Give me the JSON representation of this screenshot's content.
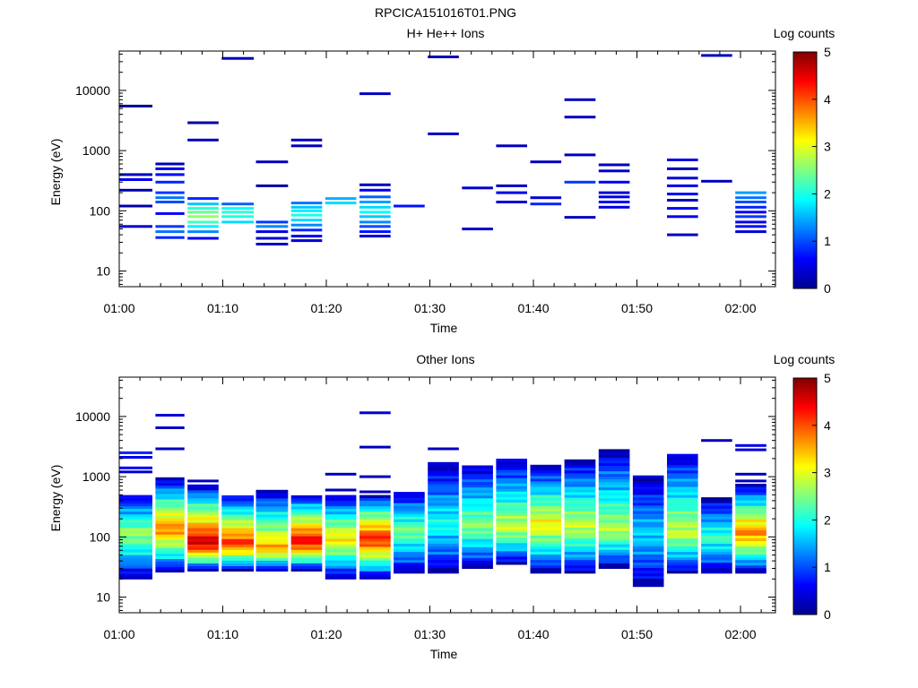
{
  "figure_title": "RPCICA151016T01.PNG",
  "colors": {
    "axis": "#000000",
    "background": "#ffffff"
  },
  "chart_data": [
    {
      "type": "heatmap",
      "title": "H+ He++ Ions",
      "xlabel": "Time",
      "ylabel": "Energy (eV)",
      "y_scale": "log",
      "ylim": [
        5.5,
        45000
      ],
      "xlim": [
        "01:00",
        "02:03"
      ],
      "x_ticks": [
        "01:00",
        "01:10",
        "01:20",
        "01:30",
        "01:40",
        "01:50",
        "02:00"
      ],
      "y_ticks": [
        "10",
        "100",
        "1000",
        "10000"
      ],
      "colorbar": {
        "label": "Log counts",
        "range": [
          0,
          5
        ],
        "ticks": [
          "0",
          "1",
          "2",
          "3",
          "4",
          "5"
        ],
        "colormap": "jet"
      },
      "time_bins_min": [
        [
          0,
          3.2
        ],
        [
          3.5,
          6.3
        ],
        [
          6.6,
          9.6
        ],
        [
          9.9,
          13.0
        ],
        [
          13.2,
          16.3
        ],
        [
          16.6,
          19.6
        ],
        [
          19.9,
          22.9
        ],
        [
          23.2,
          26.2
        ],
        [
          26.5,
          29.5
        ],
        [
          29.8,
          32.8
        ],
        [
          33.1,
          36.1
        ],
        [
          36.4,
          39.4
        ],
        [
          39.7,
          42.7
        ],
        [
          43.0,
          46.0
        ],
        [
          46.3,
          49.3
        ],
        [
          49.6,
          52.6
        ],
        [
          52.9,
          55.9
        ],
        [
          56.2,
          59.2
        ],
        [
          59.5,
          62.5
        ]
      ],
      "cells": [
        [
          0,
          5500,
          0.1
        ],
        [
          0,
          400,
          0.3
        ],
        [
          0,
          330,
          0.6
        ],
        [
          0,
          220,
          0.2
        ],
        [
          0,
          120,
          0.2
        ],
        [
          0,
          55,
          0.4
        ],
        [
          1,
          600,
          0.3
        ],
        [
          1,
          500,
          0.5
        ],
        [
          1,
          400,
          0.6
        ],
        [
          1,
          300,
          0.8
        ],
        [
          1,
          200,
          0.9
        ],
        [
          1,
          165,
          1.2
        ],
        [
          1,
          140,
          1.0
        ],
        [
          1,
          90,
          0.6
        ],
        [
          1,
          55,
          0.9
        ],
        [
          1,
          45,
          1.2
        ],
        [
          1,
          36,
          0.8
        ],
        [
          2,
          2900,
          0.2
        ],
        [
          2,
          1500,
          0.3
        ],
        [
          2,
          160,
          0.8
        ],
        [
          2,
          130,
          1.6
        ],
        [
          2,
          110,
          2.1
        ],
        [
          2,
          95,
          2.4
        ],
        [
          2,
          80,
          2.6
        ],
        [
          2,
          65,
          2.2
        ],
        [
          2,
          55,
          1.8
        ],
        [
          2,
          45,
          1.3
        ],
        [
          2,
          35,
          0.6
        ],
        [
          3,
          34000,
          0.3
        ],
        [
          3,
          130,
          1.1
        ],
        [
          3,
          110,
          1.9
        ],
        [
          3,
          95,
          2.1
        ],
        [
          3,
          80,
          2.0
        ],
        [
          3,
          65,
          1.7
        ],
        [
          4,
          650,
          0.3
        ],
        [
          4,
          260,
          0.2
        ],
        [
          4,
          65,
          0.9
        ],
        [
          4,
          55,
          1.3
        ],
        [
          4,
          45,
          0.5
        ],
        [
          4,
          35,
          0.4
        ],
        [
          4,
          28,
          0.3
        ],
        [
          5,
          1500,
          0.3
        ],
        [
          5,
          1200,
          0.3
        ],
        [
          5,
          135,
          1.2
        ],
        [
          5,
          115,
          1.6
        ],
        [
          5,
          100,
          1.8
        ],
        [
          5,
          85,
          2.0
        ],
        [
          5,
          70,
          1.7
        ],
        [
          5,
          58,
          1.3
        ],
        [
          5,
          48,
          0.8
        ],
        [
          5,
          38,
          0.6
        ],
        [
          5,
          32,
          0.4
        ],
        [
          6,
          160,
          1.5
        ],
        [
          6,
          135,
          1.7
        ],
        [
          7,
          8800,
          0.3
        ],
        [
          7,
          270,
          0.3
        ],
        [
          7,
          220,
          0.6
        ],
        [
          7,
          170,
          1.1
        ],
        [
          7,
          140,
          1.4
        ],
        [
          7,
          115,
          1.7
        ],
        [
          7,
          95,
          1.9
        ],
        [
          7,
          80,
          1.6
        ],
        [
          7,
          65,
          1.3
        ],
        [
          7,
          55,
          1.0
        ],
        [
          7,
          45,
          0.7
        ],
        [
          7,
          38,
          0.4
        ],
        [
          8,
          120,
          0.7
        ],
        [
          9,
          36000,
          0.3
        ],
        [
          9,
          1900,
          0.3
        ],
        [
          10,
          240,
          0.4
        ],
        [
          10,
          50,
          0.4
        ],
        [
          11,
          1200,
          0.3
        ],
        [
          11,
          260,
          0.3
        ],
        [
          11,
          200,
          0.5
        ],
        [
          11,
          140,
          0.4
        ],
        [
          12,
          650,
          0.3
        ],
        [
          12,
          165,
          0.4
        ],
        [
          12,
          130,
          0.8
        ],
        [
          13,
          7000,
          0.3
        ],
        [
          13,
          3600,
          0.3
        ],
        [
          13,
          850,
          0.3
        ],
        [
          13,
          300,
          0.9
        ],
        [
          13,
          78,
          0.3
        ],
        [
          14,
          580,
          0.3
        ],
        [
          14,
          460,
          0.4
        ],
        [
          14,
          300,
          0.6
        ],
        [
          14,
          200,
          0.4
        ],
        [
          14,
          170,
          0.5
        ],
        [
          14,
          140,
          0.6
        ],
        [
          14,
          115,
          0.5
        ],
        [
          16,
          700,
          0.5
        ],
        [
          16,
          500,
          0.3
        ],
        [
          16,
          350,
          0.4
        ],
        [
          16,
          260,
          0.5
        ],
        [
          16,
          190,
          0.6
        ],
        [
          16,
          150,
          0.3
        ],
        [
          16,
          110,
          0.6
        ],
        [
          16,
          80,
          0.5
        ],
        [
          16,
          40,
          0.3
        ],
        [
          17,
          38000,
          0.3
        ],
        [
          17,
          310,
          0.3
        ],
        [
          18,
          200,
          1.4
        ],
        [
          18,
          165,
          1.2
        ],
        [
          18,
          140,
          1.0
        ],
        [
          18,
          115,
          0.8
        ],
        [
          18,
          95,
          0.6
        ],
        [
          18,
          80,
          0.9
        ],
        [
          18,
          65,
          0.5
        ],
        [
          18,
          55,
          0.7
        ],
        [
          18,
          45,
          0.4
        ]
      ]
    },
    {
      "type": "heatmap",
      "title": "Other Ions",
      "xlabel": "Time",
      "ylabel": "Energy (eV)",
      "y_scale": "log",
      "ylim": [
        5.5,
        45000
      ],
      "xlim": [
        "01:00",
        "02:03"
      ],
      "x_ticks": [
        "01:00",
        "01:10",
        "01:20",
        "01:30",
        "01:40",
        "01:50",
        "02:00"
      ],
      "y_ticks": [
        "10",
        "100",
        "1000",
        "10000"
      ],
      "colorbar": {
        "label": "Log counts",
        "range": [
          0,
          5
        ],
        "ticks": [
          "0",
          "1",
          "2",
          "3",
          "4",
          "5"
        ],
        "colormap": "jet"
      },
      "time_bins_min": [
        [
          0,
          3.2
        ],
        [
          3.5,
          6.3
        ],
        [
          6.6,
          9.6
        ],
        [
          9.9,
          13.0
        ],
        [
          13.2,
          16.3
        ],
        [
          16.6,
          19.6
        ],
        [
          19.9,
          22.9
        ],
        [
          23.2,
          26.2
        ],
        [
          26.5,
          29.5
        ],
        [
          29.8,
          32.8
        ],
        [
          33.1,
          36.1
        ],
        [
          36.4,
          39.4
        ],
        [
          39.7,
          42.7
        ],
        [
          43.0,
          46.0
        ],
        [
          46.3,
          49.3
        ],
        [
          49.6,
          52.6
        ],
        [
          52.9,
          55.9
        ],
        [
          56.2,
          59.2
        ],
        [
          59.5,
          62.5
        ]
      ],
      "columns": [
        {
          "bin": 0,
          "lo": 20,
          "hi": 480,
          "peak": 2.7,
          "peak_e": 110,
          "sparse": [
            [
              2500,
              0.8
            ],
            [
              2100,
              0.5
            ],
            [
              1400,
              0.6
            ],
            [
              1200,
              0.4
            ]
          ]
        },
        {
          "bin": 1,
          "lo": 26,
          "hi": 900,
          "peak": 3.8,
          "peak_e": 130,
          "sparse": [
            [
              10500,
              0.4
            ],
            [
              6500,
              0.3
            ],
            [
              2900,
              0.3
            ]
          ]
        },
        {
          "bin": 2,
          "lo": 27,
          "hi": 700,
          "peak": 4.7,
          "peak_e": 75,
          "sparse": [
            [
              850,
              0.3
            ]
          ]
        },
        {
          "bin": 3,
          "lo": 27,
          "hi": 480,
          "peak": 4.2,
          "peak_e": 75,
          "sparse": []
        },
        {
          "bin": 4,
          "lo": 27,
          "hi": 560,
          "peak": 3.6,
          "peak_e": 60,
          "sparse": []
        },
        {
          "bin": 5,
          "lo": 27,
          "hi": 480,
          "peak": 4.5,
          "peak_e": 80,
          "sparse": []
        },
        {
          "bin": 6,
          "lo": 20,
          "hi": 460,
          "peak": 3.3,
          "peak_e": 90,
          "sparse": [
            [
              1100,
              0.3
            ],
            [
              600,
              0.3
            ]
          ]
        },
        {
          "bin": 7,
          "lo": 20,
          "hi": 480,
          "peak": 4.3,
          "peak_e": 90,
          "sparse": [
            [
              11500,
              0.4
            ],
            [
              3100,
              0.3
            ],
            [
              1000,
              0.3
            ],
            [
              560,
              0.3
            ]
          ]
        },
        {
          "bin": 8,
          "lo": 25,
          "hi": 540,
          "peak": 2.5,
          "peak_e": 120,
          "sparse": []
        },
        {
          "bin": 9,
          "lo": 25,
          "hi": 1600,
          "peak": 2.0,
          "peak_e": 150,
          "sparse": [
            [
              2900,
              0.3
            ]
          ]
        },
        {
          "bin": 10,
          "lo": 30,
          "hi": 1500,
          "peak": 2.6,
          "peak_e": 140,
          "sparse": []
        },
        {
          "bin": 11,
          "lo": 35,
          "hi": 1900,
          "peak": 2.9,
          "peak_e": 130,
          "sparse": []
        },
        {
          "bin": 12,
          "lo": 25,
          "hi": 1500,
          "peak": 3.2,
          "peak_e": 150,
          "sparse": []
        },
        {
          "bin": 13,
          "lo": 25,
          "hi": 1800,
          "peak": 2.9,
          "peak_e": 140,
          "sparse": []
        },
        {
          "bin": 14,
          "lo": 30,
          "hi": 2600,
          "peak": 2.8,
          "peak_e": 120,
          "sparse": []
        },
        {
          "bin": 15,
          "lo": 15,
          "hi": 950,
          "peak": 1.7,
          "peak_e": 100,
          "sparse": []
        },
        {
          "bin": 16,
          "lo": 25,
          "hi": 2300,
          "peak": 2.9,
          "peak_e": 110,
          "sparse": []
        },
        {
          "bin": 17,
          "lo": 25,
          "hi": 420,
          "peak": 2.2,
          "peak_e": 90,
          "sparse": [
            [
              4000,
              0.3
            ]
          ]
        },
        {
          "bin": 18,
          "lo": 25,
          "hi": 700,
          "peak": 3.8,
          "peak_e": 110,
          "sparse": [
            [
              3300,
              0.5
            ],
            [
              2800,
              0.4
            ],
            [
              1100,
              0.3
            ],
            [
              850,
              0.3
            ]
          ]
        }
      ]
    }
  ]
}
